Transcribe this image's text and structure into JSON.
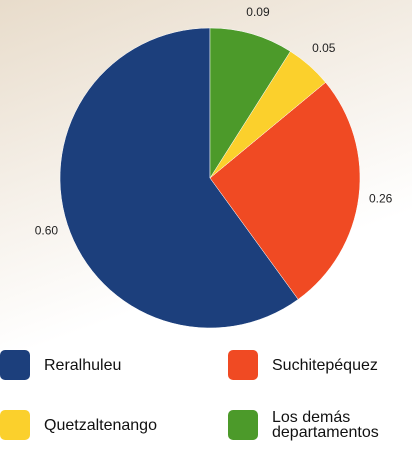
{
  "chart_data": {
    "type": "pie",
    "categories": [
      "Reralhuleu",
      "Suchitepéquez",
      "Quetzaltenango",
      "Los demás departamentos"
    ],
    "values": [
      0.6,
      0.26,
      0.05,
      0.09
    ],
    "value_labels": [
      "0.60",
      "0.26",
      "0.05",
      "0.09"
    ],
    "colors": [
      "#1c3f7c",
      "#f04a23",
      "#fbd02c",
      "#4c9a2a"
    ]
  }
}
